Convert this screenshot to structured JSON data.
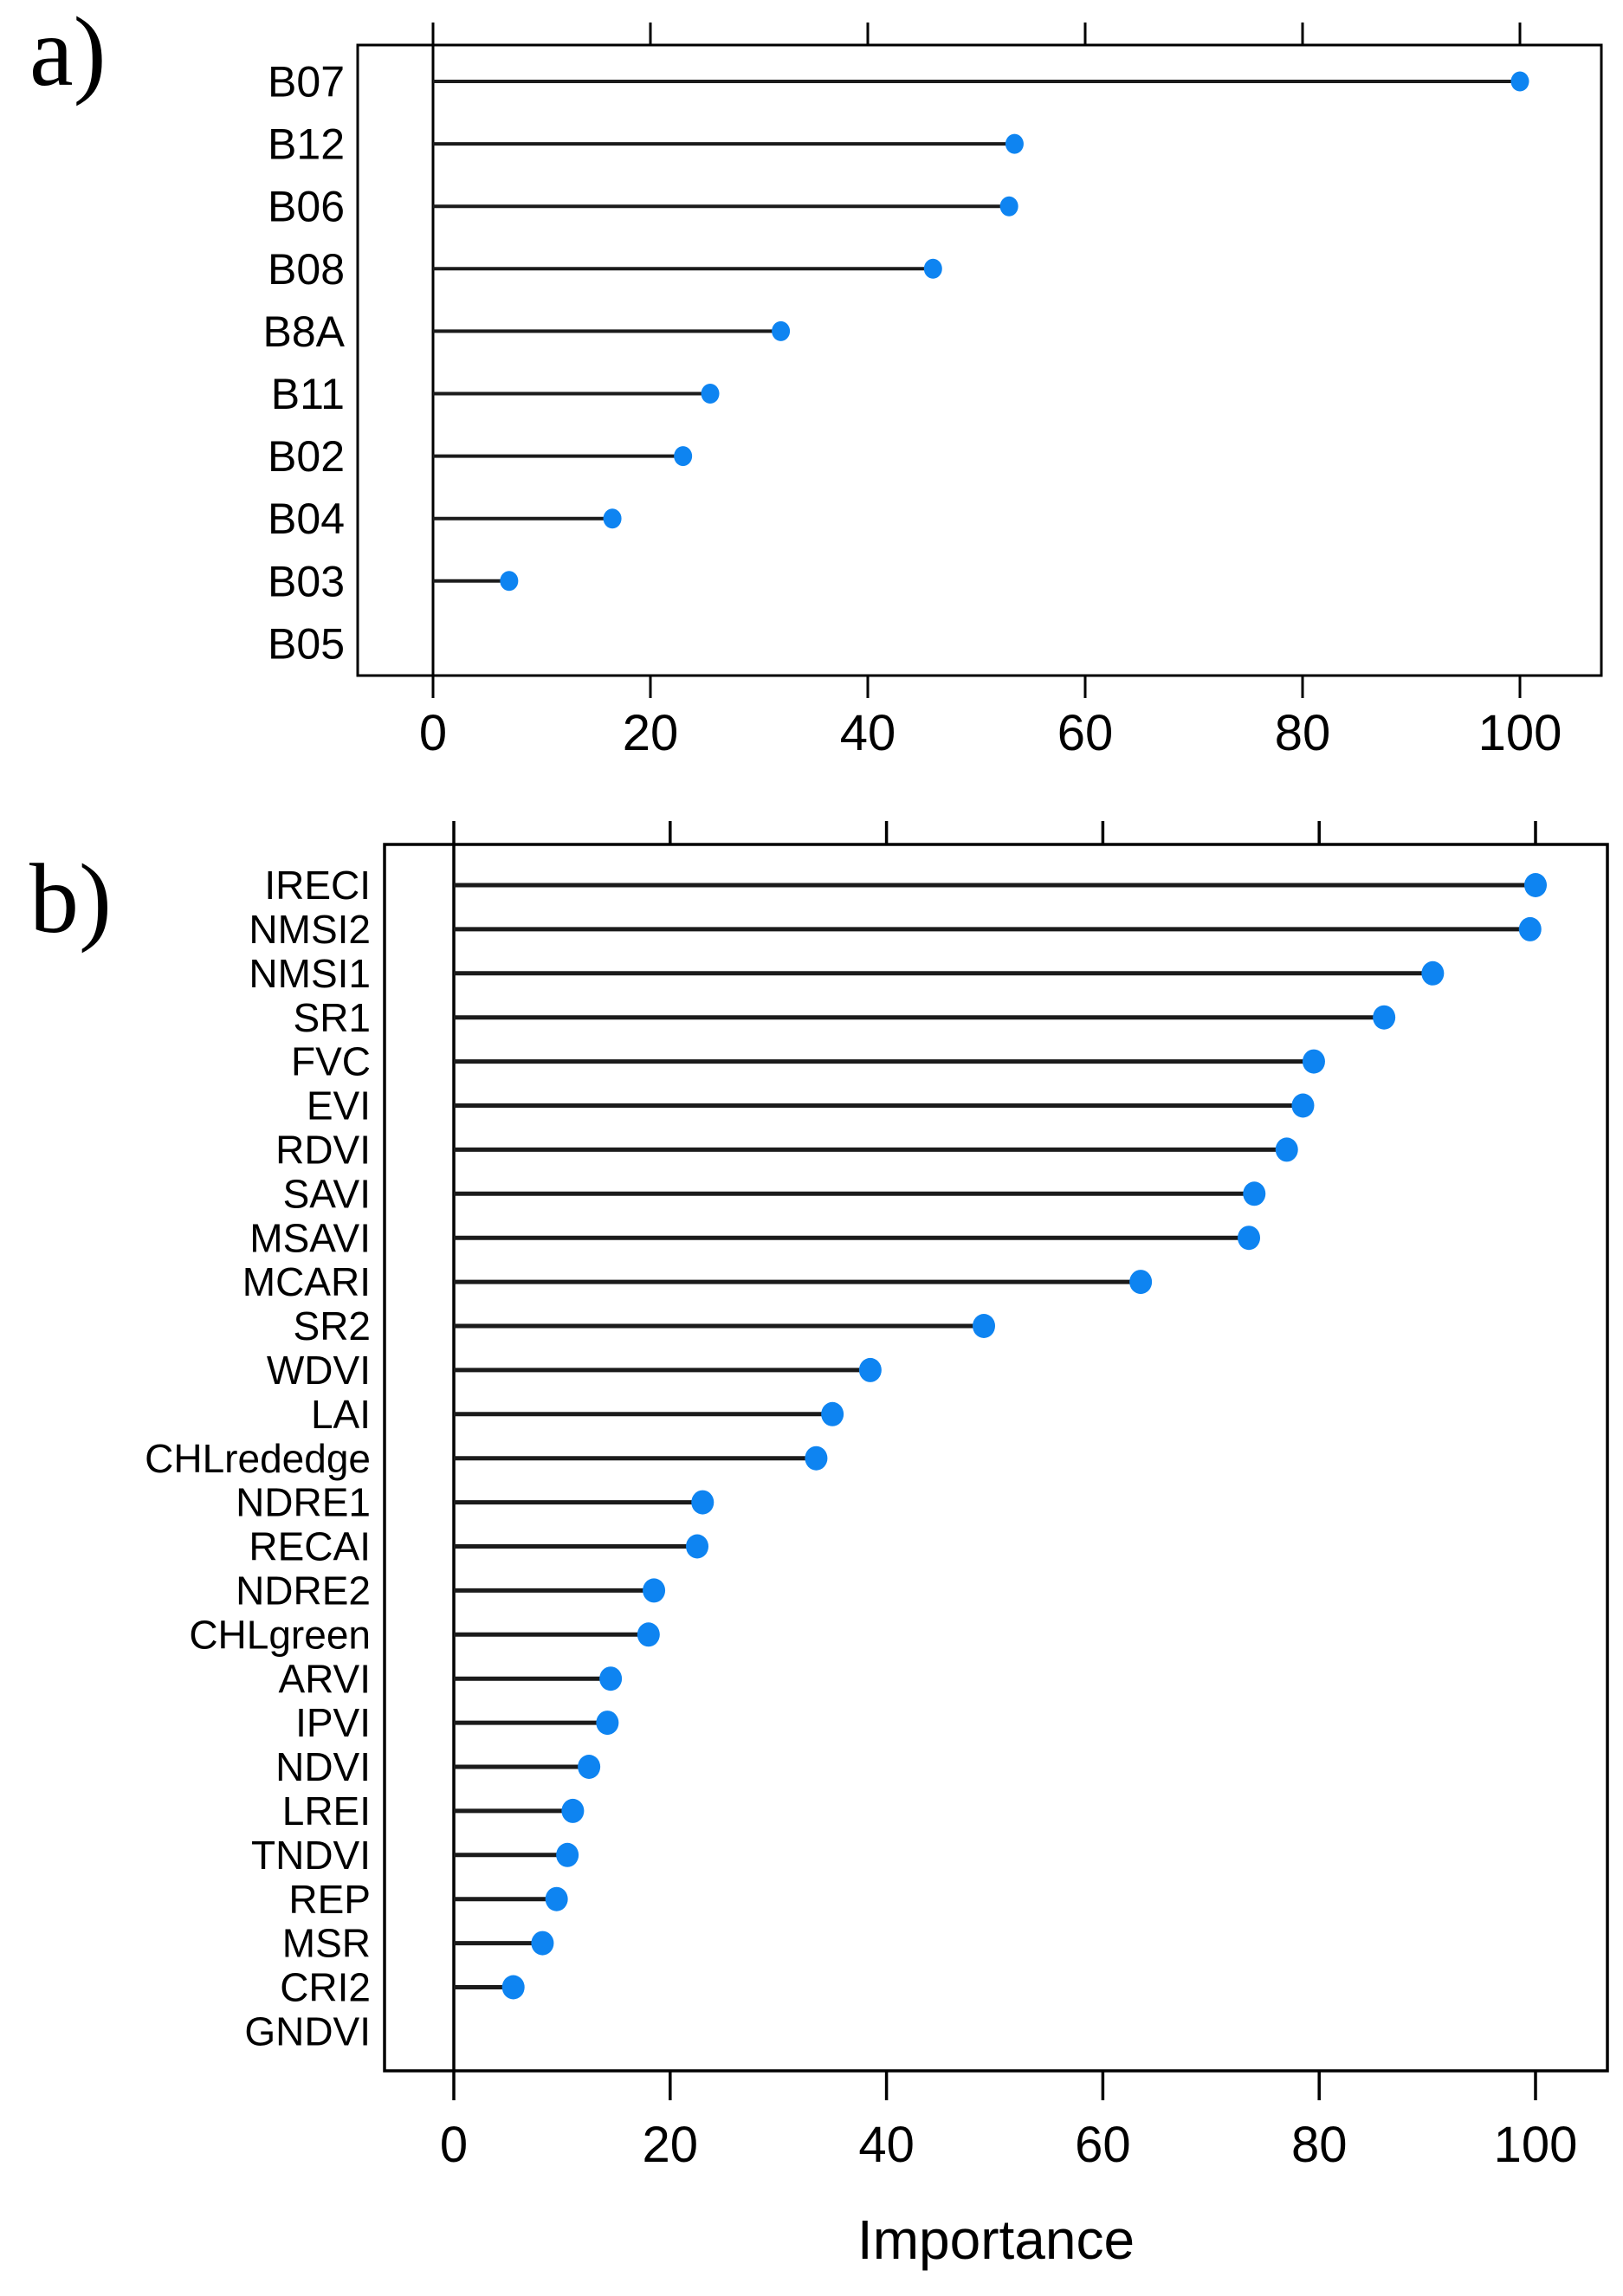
{
  "figure": {
    "background": "#ffffff",
    "dot_color": "#0e84f1",
    "stem_color": "#1b1b1b",
    "axis_color": "#000000"
  },
  "chart_data": [
    {
      "type": "scatter",
      "variant": "lollipop-dotchart",
      "panel_label": "a)",
      "title": "",
      "xlabel": "",
      "ylabel": "",
      "xlim": [
        -7,
        107.5
      ],
      "xticks": [
        0,
        20,
        40,
        60,
        80,
        100
      ],
      "grid": false,
      "legend": null,
      "dot_color": "#0e84f1",
      "stem_color": "#1b1b1b",
      "categories": [
        "B07",
        "B12",
        "B06",
        "B08",
        "B8A",
        "B11",
        "B02",
        "B04",
        "B03",
        "B05"
      ],
      "values": [
        100,
        53.5,
        53,
        46,
        32,
        25.5,
        23,
        16.5,
        7,
        0
      ]
    },
    {
      "type": "scatter",
      "variant": "lollipop-dotchart",
      "panel_label": "b)",
      "title": "",
      "xlabel": "Importance",
      "ylabel": "",
      "xlim": [
        -7,
        107.5
      ],
      "xticks": [
        0,
        20,
        40,
        60,
        80,
        100
      ],
      "grid": false,
      "legend": null,
      "dot_color": "#0e84f1",
      "stem_color": "#1b1b1b",
      "categories": [
        "IRECI",
        "NMSI2",
        "NMSI1",
        "SR1",
        "FVC",
        "EVI",
        "RDVI",
        "SAVI",
        "MSAVI",
        "MCARI",
        "SR2",
        "WDVI",
        "LAI",
        "CHLrededge",
        "NDRE1",
        "RECAI",
        "NDRE2",
        "CHLgreen",
        "ARVI",
        "IPVI",
        "NDVI",
        "LREI",
        "TNDVI",
        "REP",
        "MSR",
        "CRI2",
        "GNDVI"
      ],
      "values": [
        100,
        99.5,
        90.5,
        86,
        79.5,
        78.5,
        77,
        74,
        73.5,
        63.5,
        49,
        38.5,
        35,
        33.5,
        23,
        22.5,
        18.5,
        18,
        14.5,
        14.2,
        12.5,
        11,
        10.5,
        9.5,
        8.2,
        5.5,
        0
      ]
    }
  ]
}
